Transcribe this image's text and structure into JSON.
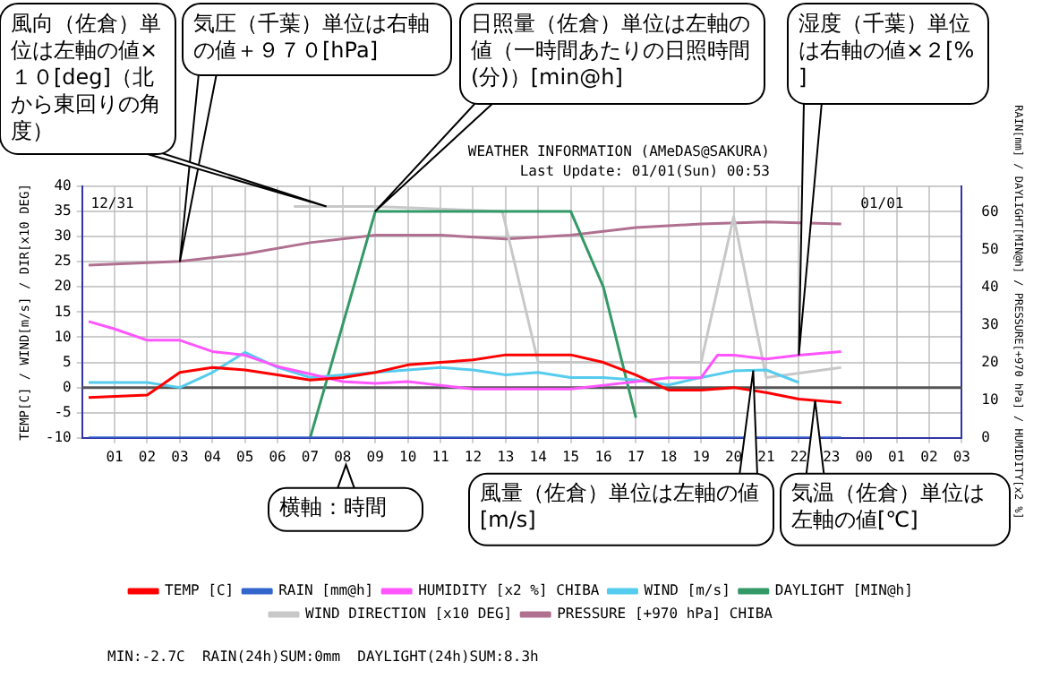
{
  "chart_data": {
    "type": "line",
    "title": "WEATHER INFORMATION (AMeDAS@SAKURA)",
    "subtitle": "Last Update: 01/01(Sun) 00:53",
    "ylabel": "TEMP[C] / WIND[m/s] / DIR[x10 DEG]",
    "y2label": "RAIN[mm] / DAYLIGHT[MIN@h] / PRESSURE[+970 hPa] / HUMIDITY[x2 %]",
    "xlim": [
      0,
      27
    ],
    "xticks": [
      {
        "value": 1,
        "label": "01"
      },
      {
        "value": 2,
        "label": "02"
      },
      {
        "value": 3,
        "label": "03"
      },
      {
        "value": 4,
        "label": "04"
      },
      {
        "value": 5,
        "label": "05"
      },
      {
        "value": 6,
        "label": "06"
      },
      {
        "value": 7,
        "label": "07"
      },
      {
        "value": 8,
        "label": "08"
      },
      {
        "value": 9,
        "label": "09"
      },
      10,
      11,
      12,
      13,
      14,
      15,
      16,
      17,
      18,
      19,
      20,
      21,
      22,
      23,
      {
        "value": 24,
        "label": "00"
      },
      {
        "value": 25,
        "label": "01"
      },
      {
        "value": 26,
        "label": "02"
      },
      {
        "value": 27,
        "label": "03"
      }
    ],
    "ylim": [
      -10,
      40
    ],
    "yticks": [
      -10,
      -5,
      0,
      5,
      10,
      15,
      20,
      25,
      30,
      35,
      40
    ],
    "y2lim": [
      0,
      67
    ],
    "y2ticks": [
      0,
      10,
      20,
      30,
      40,
      50,
      60
    ],
    "grid": true,
    "legend": "bottom",
    "marker": "none",
    "line_style": "solid",
    "ref_lines": [
      {
        "axis": "y",
        "value": 0,
        "color": "#555555"
      }
    ],
    "series": [
      {
        "name": "TEMP [C]",
        "color": "#ff0000",
        "x": [
          0.2,
          2,
          3,
          4,
          5,
          6,
          7,
          8,
          9,
          10,
          11,
          12,
          13,
          14,
          15,
          16,
          17,
          18,
          19,
          20,
          21,
          22,
          23.3
        ],
        "values": [
          -2,
          -1.5,
          3,
          4,
          3.5,
          2.5,
          1.5,
          2,
          3,
          4.5,
          5,
          5.5,
          6.5,
          6.5,
          6.5,
          5,
          2.5,
          -0.5,
          -0.5,
          0,
          -1,
          -2.3,
          -3
        ]
      },
      {
        "name": "RAIN [mm@h]",
        "color": "#3366cc",
        "axis": "y2",
        "x": [
          0.2,
          23.3
        ],
        "values": [
          0,
          0
        ]
      },
      {
        "name": "HUMIDITY [x2 %] CHIBA",
        "color": "#ff55ff",
        "axis": "y2",
        "x": [
          0.2,
          1,
          2,
          3,
          4,
          5,
          6,
          7,
          8,
          9,
          10,
          11,
          12,
          13,
          14,
          15,
          16,
          17,
          18,
          19,
          19.5,
          20,
          21,
          22,
          23.3
        ],
        "values": [
          31,
          29,
          26,
          26,
          23,
          22,
          19,
          17,
          15,
          14.5,
          15,
          14,
          13,
          13,
          13,
          13,
          14,
          15,
          16,
          16,
          22,
          22,
          21,
          22,
          23
        ]
      },
      {
        "name": "WIND [m/s]",
        "color": "#55ccee",
        "x": [
          0.2,
          2,
          3,
          4,
          5,
          6,
          7,
          8,
          9,
          10,
          11,
          12,
          13,
          14,
          15,
          16,
          17,
          18,
          19,
          20,
          21,
          22
        ],
        "values": [
          1,
          1,
          0,
          3,
          7,
          4,
          2,
          2.5,
          3,
          3.5,
          4,
          3.5,
          2.5,
          3,
          2,
          2,
          1.5,
          0.5,
          2,
          3.3,
          3.5,
          1
        ]
      },
      {
        "name": "DAYLIGHT [MIN@h]",
        "color": "#339966",
        "x": [
          7,
          9,
          15,
          16,
          17
        ],
        "values": [
          -10,
          35,
          35,
          20,
          -6
        ]
      },
      {
        "name": "WIND DIRECTION [x10 DEG]",
        "color": "#c8c8c8",
        "x": [
          6.5,
          9,
          12.9,
          14,
          19,
          20,
          21,
          23.3
        ],
        "values": [
          36,
          36,
          35,
          5,
          5,
          34,
          2,
          4
        ]
      },
      {
        "name": "PRESSURE [+970 hPa] CHIBA",
        "color": "#b07090",
        "axis": "y2",
        "x": [
          0.2,
          3,
          5,
          7,
          9,
          11,
          13,
          15,
          17,
          19,
          21,
          23.3
        ],
        "values": [
          46,
          47,
          49,
          52,
          54,
          54,
          53,
          54,
          56,
          57,
          57.5,
          57
        ]
      }
    ],
    "annotations": [
      "12/31",
      "01/01",
      "MIN:-2.7C  RAIN(24h)SUM:0mm  DAYLIGHT(24h)SUM:8.3h",
      {
        "text": "気圧（千葉）単位は右軸の値＋９７０[hPa]",
        "x": 3,
        "y": 25
      },
      "日照量（佐倉）単位は左軸の値（一時間あたりの日照時間(分)）[min@h]",
      {
        "text": "湿度（千葉）単位は右軸の値×２[%]",
        "x": 22,
        "y": 6.4
      },
      {
        "text": "風向（佐倉）単位は左軸の値×１０[deg]（北から東回りの角度）",
        "x": 7.5,
        "y": 36
      },
      "横軸：時間",
      {
        "text": "風量（佐倉）単位は左軸の値[m/s]",
        "x": 20.6,
        "y": 3.4
      },
      {
        "text": "気温（佐倉）単位は左軸の値[℃]",
        "x": 22.5,
        "y": -2.6
      }
    ]
  }
}
